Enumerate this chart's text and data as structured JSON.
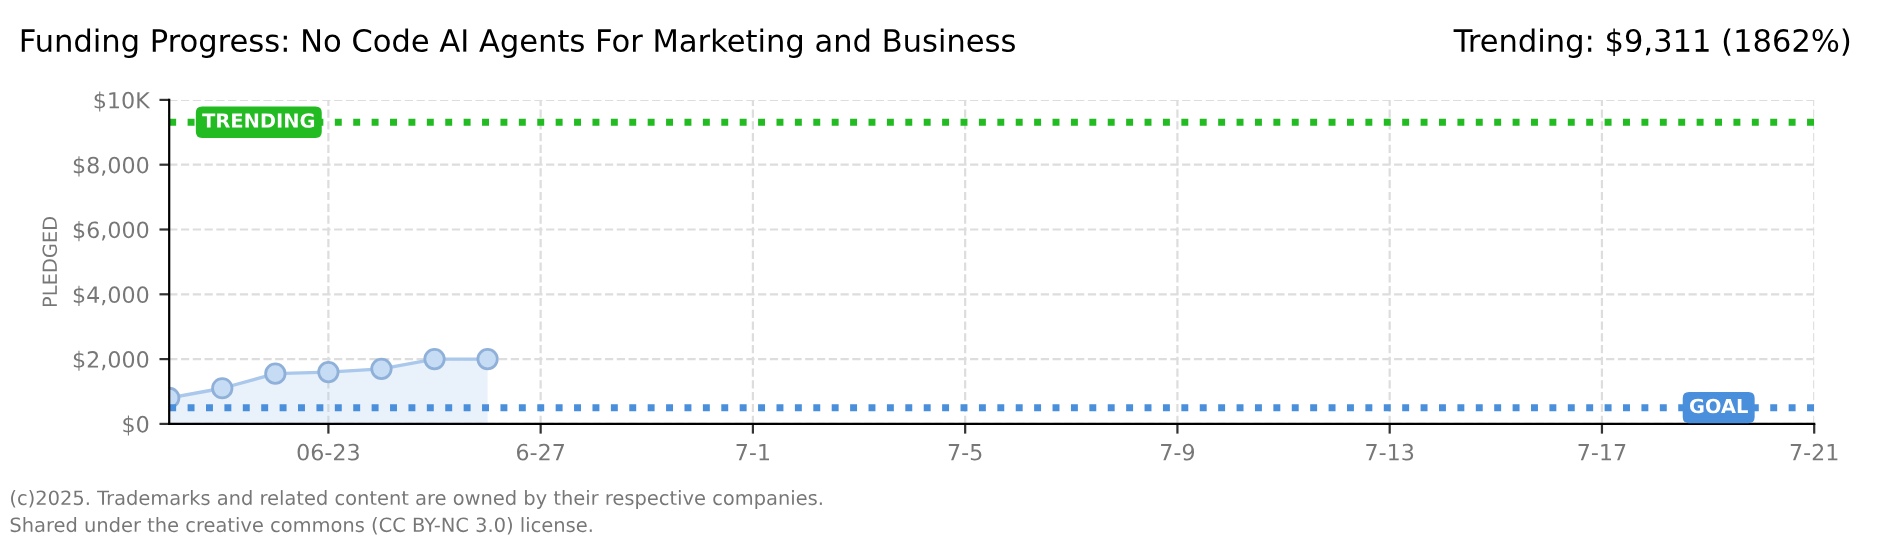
{
  "chart_data": {
    "type": "area",
    "title": "Funding Progress: No Code AI Agents For Marketing and Business",
    "subtitle": "Trending: $9,311 (1862%)",
    "ylabel": "PLEDGED",
    "x": [
      "2025-06-20",
      "2025-06-21",
      "2025-06-22",
      "2025-06-23",
      "2025-06-24",
      "2025-06-25",
      "2025-06-26"
    ],
    "series": [
      {
        "color": "#a9c8ec",
        "values": [
          800,
          1100,
          1550,
          1600,
          1700,
          2000,
          2000
        ]
      }
    ],
    "marker": "circle",
    "grid": true,
    "xlim": [
      "2025-06-20",
      "2025-07-21"
    ],
    "xticks": [
      {
        "value": "2025-06-23",
        "label": "06-23"
      },
      {
        "value": "2025-06-27",
        "label": "6-27"
      },
      {
        "value": "2025-07-01",
        "label": "7-1"
      },
      {
        "value": "2025-07-05",
        "label": "7-5"
      },
      {
        "value": "2025-07-09",
        "label": "7-9"
      },
      {
        "value": "2025-07-13",
        "label": "7-13"
      },
      {
        "value": "2025-07-17",
        "label": "7-17"
      },
      {
        "value": "2025-07-21",
        "label": "7-21"
      }
    ],
    "ylim": [
      0,
      10000
    ],
    "yticks": [
      {
        "value": 0,
        "label": "$0"
      },
      {
        "value": 2000,
        "label": "$2,000"
      },
      {
        "value": 4000,
        "label": "$4,000"
      },
      {
        "value": 6000,
        "label": "$6,000"
      },
      {
        "value": 8000,
        "label": "$8,000"
      },
      {
        "value": 10000,
        "label": "$10K"
      }
    ],
    "ref_lines": [
      {
        "axis": "y",
        "value": 9311,
        "label": "TRENDING",
        "color": "#22bb22",
        "line_style": "dotted"
      },
      {
        "axis": "y",
        "value": 500,
        "label": "GOAL",
        "color": "#4a8fdc",
        "line_style": "dotted"
      }
    ],
    "annotations": [
      "(c)2025. Trademarks and related content are owned by their respective companies.",
      "Shared under the creative commons (CC BY-NC 3.0) license."
    ]
  }
}
